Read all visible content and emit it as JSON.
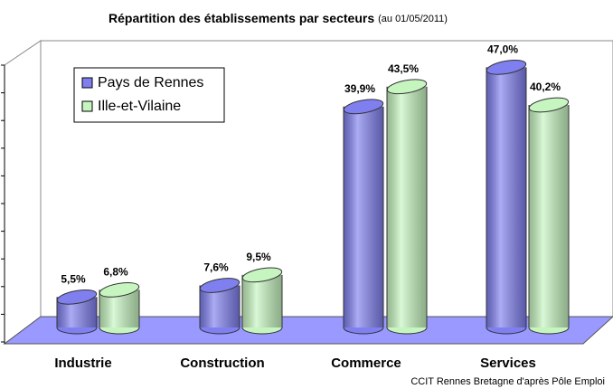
{
  "chart_data": {
    "type": "bar",
    "title": "Répartition des établissements par secteurs",
    "subtitle": "(au 01/05/2011)",
    "source": "CCIT Rennes Bretagne d'après Pôle Emploi",
    "categories": [
      "Industrie",
      "Construction",
      "Commerce",
      "Services"
    ],
    "series": [
      {
        "name": "Pays de Rennes",
        "color": "#7f7fef",
        "values": [
          5.5,
          7.6,
          39.9,
          47.0
        ],
        "value_labels": [
          "5,5%",
          "7,6%",
          "39,9%",
          "47,0%"
        ]
      },
      {
        "name": "Ille-et-Vilaine",
        "color": "#c6f5c0",
        "values": [
          6.8,
          9.5,
          43.5,
          40.2
        ],
        "value_labels": [
          "6,8%",
          "9,5%",
          "43,5%",
          "40,2%"
        ]
      }
    ],
    "ylim": [
      0,
      50
    ],
    "yticks": [
      0,
      5,
      10,
      15,
      20,
      25,
      30,
      35,
      40,
      45,
      50
    ],
    "legend": "top-left"
  }
}
